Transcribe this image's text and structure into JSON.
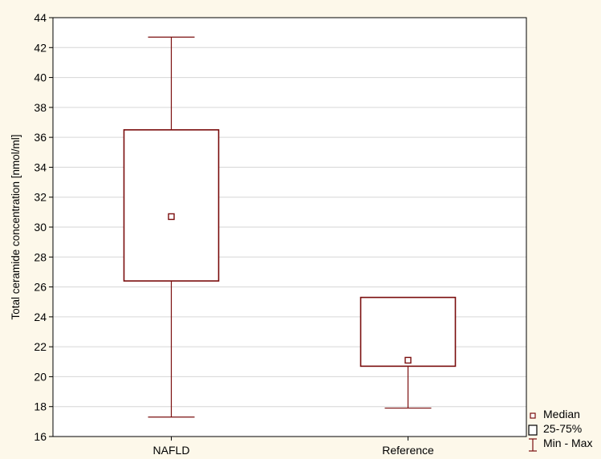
{
  "chart_data": {
    "type": "box",
    "ylabel": "Total ceramide concentration [nmol/ml]",
    "xlabel": "",
    "ylim": [
      16,
      44
    ],
    "yticks": [
      16,
      18,
      20,
      22,
      24,
      26,
      28,
      30,
      32,
      34,
      36,
      38,
      40,
      42,
      44
    ],
    "grid": true,
    "legend_position": "bottom-right",
    "categories": [
      "NAFLD",
      "Reference"
    ],
    "boxes": [
      {
        "category": "NAFLD",
        "min": 17.3,
        "q1": 26.4,
        "median": 30.7,
        "q3": 36.5,
        "max": 42.7
      },
      {
        "category": "Reference",
        "min": 17.9,
        "q1": 20.7,
        "median": 21.1,
        "q3": 25.3,
        "max": 25.3
      }
    ],
    "legend": [
      {
        "symbol": "median-marker",
        "label": "Median"
      },
      {
        "symbol": "box",
        "label": "25-75%"
      },
      {
        "symbol": "whisker",
        "label": "Min - Max"
      }
    ],
    "colors": {
      "series": "#7a0d0d",
      "grid": "#d6d6d6",
      "background": "#fdf8ea",
      "plot": "#ffffff"
    }
  }
}
